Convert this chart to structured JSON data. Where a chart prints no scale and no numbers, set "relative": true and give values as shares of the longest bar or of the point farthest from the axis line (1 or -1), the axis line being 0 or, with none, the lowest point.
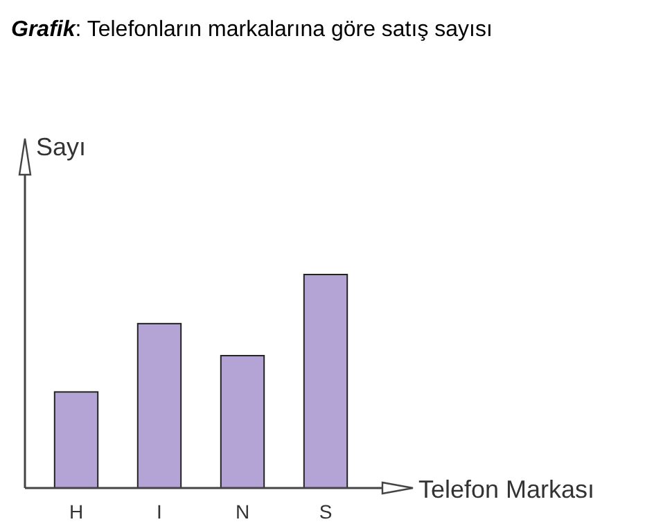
{
  "chart_data": {
    "type": "bar",
    "title": "Grafik: Telefonların markalarına göre satış sayısı",
    "xlabel": "Telefon Markası",
    "ylabel": "Sayı",
    "categories": [
      "H",
      "I",
      "N",
      "S"
    ],
    "values": [
      0.45,
      0.77,
      0.62,
      1
    ],
    "color": "#b3a4d5",
    "relative": true
  }
}
